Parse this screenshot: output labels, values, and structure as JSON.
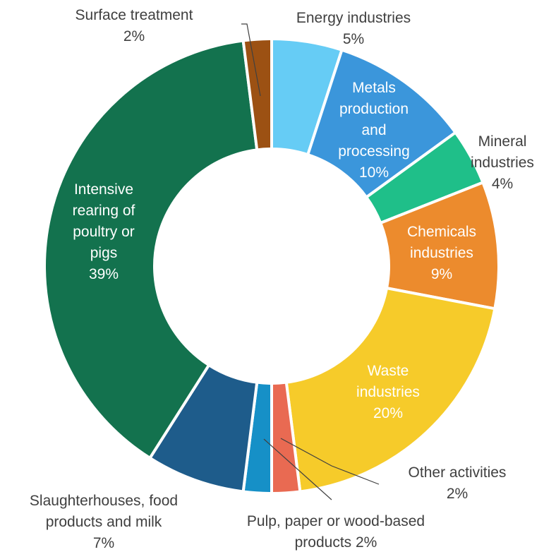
{
  "chart_data": {
    "type": "pie",
    "title": "",
    "categories": [
      "Energy industries",
      "Metals production and processing",
      "Mineral industries",
      "Chemicals industries",
      "Waste industries",
      "Other activities",
      "Pulp, paper or wood-based products",
      "Slaughterhouses, food products and milk",
      "Intensive rearing of poultry or pigs",
      "Surface treatment"
    ],
    "values": [
      5,
      10,
      4,
      9,
      20,
      2,
      2,
      7,
      39,
      2
    ],
    "value_unit": "%",
    "colors": [
      "#66ccf5",
      "#3b96db",
      "#1fbf89",
      "#ec8b2d",
      "#f6cb2a",
      "#e96a52",
      "#1690c7",
      "#1e5c8b",
      "#13724e",
      "#9c5113"
    ],
    "labels": [
      {
        "lines": [
          "Energy industries",
          "5%"
        ],
        "color": "#404040"
      },
      {
        "lines": [
          "Metals",
          "production",
          "and",
          "processing",
          "10%"
        ],
        "color": "#ffffff"
      },
      {
        "lines": [
          "Mineral",
          "industries",
          "4%"
        ],
        "color": "#404040"
      },
      {
        "lines": [
          "Chemicals",
          "industries",
          "9%"
        ],
        "color": "#ffffff"
      },
      {
        "lines": [
          "Waste",
          "industries",
          "20%"
        ],
        "color": "#ffffff"
      },
      {
        "lines": [
          "Other activities",
          "2%"
        ],
        "color": "#404040"
      },
      {
        "lines": [
          "Pulp, paper or wood-based",
          "products 2%"
        ],
        "color": "#404040"
      },
      {
        "lines": [
          "Slaughterhouses, food",
          "products and milk",
          "7%"
        ],
        "color": "#404040"
      },
      {
        "lines": [
          "Intensive",
          "rearing of",
          "poultry or",
          "pigs",
          "39%"
        ],
        "color": "#ffffff"
      },
      {
        "lines": [
          "Surface treatment",
          "2%"
        ],
        "color": "#404040"
      }
    ]
  }
}
